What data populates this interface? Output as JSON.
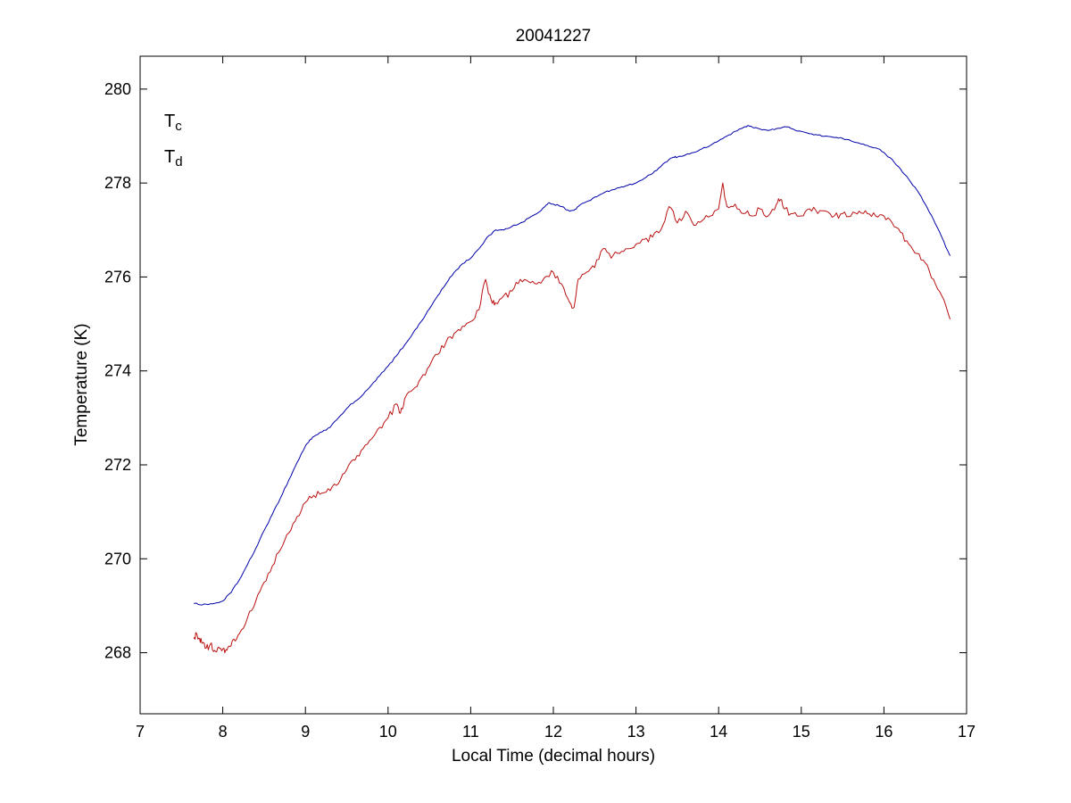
{
  "figure": {
    "background": "#ffffff"
  },
  "chart_data": {
    "type": "line",
    "title": "20041227",
    "xlabel": "Local Time (decimal hours)",
    "ylabel": "Temperature (K)",
    "xlim": [
      7,
      17
    ],
    "ylim": [
      266.7,
      280.7
    ],
    "xticks": [
      7,
      8,
      9,
      10,
      11,
      12,
      13,
      14,
      15,
      16,
      17
    ],
    "yticks": [
      268,
      270,
      272,
      274,
      276,
      278,
      280
    ],
    "grid": false,
    "axis_color": "#000000",
    "legend": {
      "position": "top-left-inside",
      "entries": [
        {
          "main": "T",
          "sub": "c",
          "color": "#0000cc"
        },
        {
          "main": "T",
          "sub": "d",
          "color": "#bb1111"
        }
      ]
    },
    "series": [
      {
        "name": "T_c",
        "color": "#0000aa",
        "noise": 0.02,
        "points": [
          [
            7.65,
            269.05
          ],
          [
            7.7,
            269.03
          ],
          [
            7.8,
            269.03
          ],
          [
            7.9,
            269.05
          ],
          [
            8.0,
            269.1
          ],
          [
            8.1,
            269.28
          ],
          [
            8.2,
            269.55
          ],
          [
            8.3,
            269.88
          ],
          [
            8.4,
            270.22
          ],
          [
            8.5,
            270.6
          ],
          [
            8.6,
            270.95
          ],
          [
            8.7,
            271.3
          ],
          [
            8.8,
            271.68
          ],
          [
            8.9,
            272.05
          ],
          [
            9.0,
            272.4
          ],
          [
            9.05,
            272.52
          ],
          [
            9.1,
            272.6
          ],
          [
            9.2,
            272.7
          ],
          [
            9.3,
            272.8
          ],
          [
            9.4,
            273.0
          ],
          [
            9.5,
            273.2
          ],
          [
            9.6,
            273.35
          ],
          [
            9.7,
            273.5
          ],
          [
            9.8,
            273.7
          ],
          [
            9.9,
            273.9
          ],
          [
            10.0,
            274.1
          ],
          [
            10.1,
            274.32
          ],
          [
            10.2,
            274.55
          ],
          [
            10.3,
            274.8
          ],
          [
            10.4,
            275.05
          ],
          [
            10.5,
            275.32
          ],
          [
            10.6,
            275.6
          ],
          [
            10.7,
            275.85
          ],
          [
            10.8,
            276.1
          ],
          [
            10.9,
            276.28
          ],
          [
            11.0,
            276.4
          ],
          [
            11.1,
            276.6
          ],
          [
            11.2,
            276.85
          ],
          [
            11.3,
            277.0
          ],
          [
            11.4,
            277.0
          ],
          [
            11.5,
            277.08
          ],
          [
            11.6,
            277.15
          ],
          [
            11.7,
            277.25
          ],
          [
            11.8,
            277.35
          ],
          [
            11.9,
            277.5
          ],
          [
            11.95,
            277.58
          ],
          [
            12.0,
            277.55
          ],
          [
            12.1,
            277.5
          ],
          [
            12.2,
            277.4
          ],
          [
            12.25,
            277.42
          ],
          [
            12.3,
            277.5
          ],
          [
            12.4,
            277.6
          ],
          [
            12.5,
            277.7
          ],
          [
            12.6,
            277.78
          ],
          [
            12.7,
            277.85
          ],
          [
            12.8,
            277.9
          ],
          [
            12.9,
            277.95
          ],
          [
            13.0,
            278.0
          ],
          [
            13.1,
            278.1
          ],
          [
            13.2,
            278.2
          ],
          [
            13.3,
            278.35
          ],
          [
            13.4,
            278.5
          ],
          [
            13.45,
            278.55
          ],
          [
            13.5,
            278.55
          ],
          [
            13.6,
            278.6
          ],
          [
            13.7,
            278.65
          ],
          [
            13.8,
            278.73
          ],
          [
            13.9,
            278.8
          ],
          [
            14.0,
            278.9
          ],
          [
            14.1,
            279.0
          ],
          [
            14.2,
            279.1
          ],
          [
            14.3,
            279.18
          ],
          [
            14.35,
            279.22
          ],
          [
            14.4,
            279.2
          ],
          [
            14.5,
            279.15
          ],
          [
            14.6,
            279.12
          ],
          [
            14.7,
            279.16
          ],
          [
            14.8,
            279.2
          ],
          [
            14.9,
            279.15
          ],
          [
            15.0,
            279.1
          ],
          [
            15.1,
            279.05
          ],
          [
            15.2,
            279.02
          ],
          [
            15.3,
            279.0
          ],
          [
            15.4,
            278.97
          ],
          [
            15.5,
            278.95
          ],
          [
            15.6,
            278.9
          ],
          [
            15.7,
            278.85
          ],
          [
            15.8,
            278.8
          ],
          [
            15.9,
            278.75
          ],
          [
            16.0,
            278.65
          ],
          [
            16.1,
            278.5
          ],
          [
            16.2,
            278.3
          ],
          [
            16.3,
            278.08
          ],
          [
            16.4,
            277.85
          ],
          [
            16.5,
            277.55
          ],
          [
            16.6,
            277.22
          ],
          [
            16.7,
            276.85
          ],
          [
            16.8,
            276.45
          ]
        ]
      },
      {
        "name": "T_d",
        "color": "#bb1111",
        "noise": 0.09,
        "points": [
          [
            7.65,
            268.3
          ],
          [
            7.68,
            268.42
          ],
          [
            7.72,
            268.3
          ],
          [
            7.75,
            268.2
          ],
          [
            7.8,
            268.1
          ],
          [
            7.85,
            268.18
          ],
          [
            7.9,
            268.05
          ],
          [
            7.95,
            268.12
          ],
          [
            8.0,
            268.08
          ],
          [
            8.05,
            268.05
          ],
          [
            8.1,
            268.15
          ],
          [
            8.15,
            268.25
          ],
          [
            8.2,
            268.4
          ],
          [
            8.3,
            268.75
          ],
          [
            8.4,
            269.1
          ],
          [
            8.5,
            269.5
          ],
          [
            8.6,
            269.85
          ],
          [
            8.7,
            270.2
          ],
          [
            8.8,
            270.55
          ],
          [
            8.9,
            270.9
          ],
          [
            9.0,
            271.2
          ],
          [
            9.1,
            271.35
          ],
          [
            9.2,
            271.4
          ],
          [
            9.3,
            271.45
          ],
          [
            9.4,
            271.6
          ],
          [
            9.5,
            271.9
          ],
          [
            9.6,
            272.1
          ],
          [
            9.7,
            272.35
          ],
          [
            9.8,
            272.55
          ],
          [
            9.9,
            272.8
          ],
          [
            10.0,
            273.0
          ],
          [
            10.1,
            273.3
          ],
          [
            10.15,
            273.1
          ],
          [
            10.2,
            273.4
          ],
          [
            10.3,
            273.6
          ],
          [
            10.4,
            273.85
          ],
          [
            10.5,
            274.1
          ],
          [
            10.6,
            274.35
          ],
          [
            10.7,
            274.6
          ],
          [
            10.8,
            274.8
          ],
          [
            10.9,
            274.95
          ],
          [
            11.0,
            275.05
          ],
          [
            11.1,
            275.3
          ],
          [
            11.18,
            275.95
          ],
          [
            11.25,
            275.5
          ],
          [
            11.3,
            275.45
          ],
          [
            11.4,
            275.6
          ],
          [
            11.5,
            275.7
          ],
          [
            11.6,
            275.95
          ],
          [
            11.7,
            275.9
          ],
          [
            11.8,
            275.85
          ],
          [
            11.9,
            276.0
          ],
          [
            12.0,
            276.1
          ],
          [
            12.1,
            275.85
          ],
          [
            12.2,
            275.45
          ],
          [
            12.25,
            275.35
          ],
          [
            12.3,
            275.95
          ],
          [
            12.4,
            276.1
          ],
          [
            12.5,
            276.2
          ],
          [
            12.6,
            276.6
          ],
          [
            12.7,
            276.4
          ],
          [
            12.8,
            276.5
          ],
          [
            12.9,
            276.6
          ],
          [
            13.0,
            276.7
          ],
          [
            13.1,
            276.8
          ],
          [
            13.2,
            276.85
          ],
          [
            13.3,
            277.0
          ],
          [
            13.4,
            277.5
          ],
          [
            13.5,
            277.15
          ],
          [
            13.6,
            277.4
          ],
          [
            13.7,
            277.1
          ],
          [
            13.8,
            277.2
          ],
          [
            13.9,
            277.3
          ],
          [
            14.0,
            277.45
          ],
          [
            14.05,
            278.0
          ],
          [
            14.1,
            277.5
          ],
          [
            14.2,
            277.55
          ],
          [
            14.3,
            277.35
          ],
          [
            14.4,
            277.3
          ],
          [
            14.5,
            277.45
          ],
          [
            14.6,
            277.3
          ],
          [
            14.7,
            277.55
          ],
          [
            14.75,
            277.65
          ],
          [
            14.8,
            277.45
          ],
          [
            14.9,
            277.35
          ],
          [
            15.0,
            277.3
          ],
          [
            15.1,
            277.45
          ],
          [
            15.2,
            277.35
          ],
          [
            15.3,
            277.4
          ],
          [
            15.4,
            277.3
          ],
          [
            15.5,
            277.35
          ],
          [
            15.6,
            277.3
          ],
          [
            15.7,
            277.4
          ],
          [
            15.8,
            277.35
          ],
          [
            15.9,
            277.3
          ],
          [
            16.0,
            277.3
          ],
          [
            16.1,
            277.15
          ],
          [
            16.2,
            276.95
          ],
          [
            16.3,
            276.7
          ],
          [
            16.4,
            276.5
          ],
          [
            16.5,
            276.3
          ],
          [
            16.6,
            275.95
          ],
          [
            16.7,
            275.6
          ],
          [
            16.8,
            275.1
          ]
        ]
      }
    ]
  }
}
